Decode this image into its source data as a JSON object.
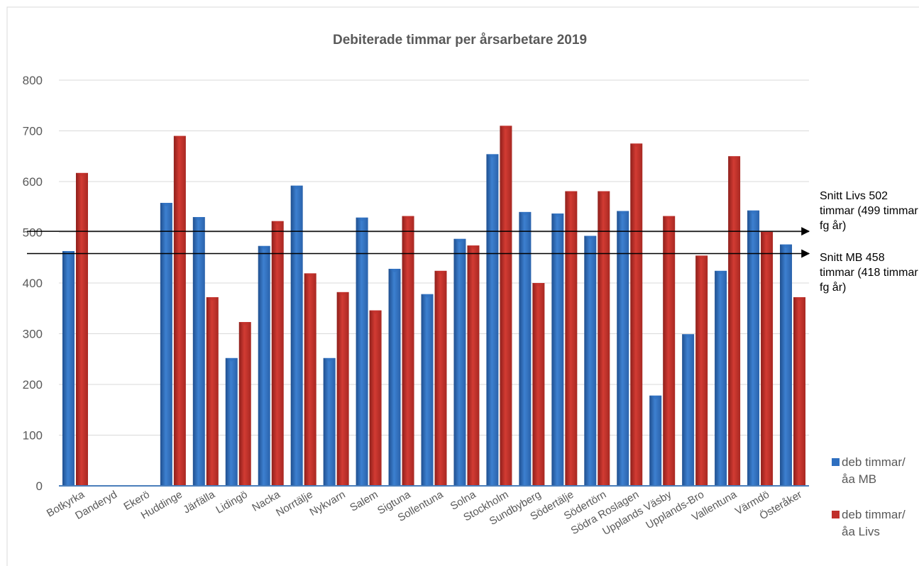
{
  "chart_data": {
    "type": "bar",
    "title": "Debiterade timmar per årsarbetare 2019",
    "categories": [
      "Botkyrka",
      "Danderyd",
      "Ekerö",
      "Huddinge",
      "Järfälla",
      "Lidingö",
      "Nacka",
      "Norrtälje",
      "Nykvarn",
      "Salem",
      "Sigtuna",
      "Sollentuna",
      "Solna",
      "Stockholm",
      "Sundbyberg",
      "Södertälje",
      "Södertörn",
      "Södra Roslagen",
      "Upplands Väsby",
      "Upplands-Bro",
      "Vallentuna",
      "Värmdö",
      "Österåker"
    ],
    "series": [
      {
        "name": "deb timmar/åa MB",
        "color": "#2e6fc0",
        "values": [
          463,
          null,
          null,
          558,
          530,
          252,
          473,
          592,
          252,
          529,
          428,
          378,
          487,
          654,
          540,
          537,
          493,
          542,
          178,
          299,
          424,
          543,
          476
        ]
      },
      {
        "name": "deb timmar/åa Livs",
        "color": "#c0302b",
        "values": [
          617,
          null,
          null,
          690,
          372,
          323,
          522,
          419,
          382,
          346,
          532,
          424,
          474,
          710,
          400,
          581,
          581,
          675,
          532,
          454,
          650,
          501,
          372
        ]
      }
    ],
    "ylim": [
      0,
      800
    ],
    "yticks": [
      0,
      100,
      200,
      300,
      400,
      500,
      600,
      700,
      800
    ],
    "grid": true,
    "legend": "bottom-right",
    "annotations": [
      {
        "value": 502,
        "text": "Snitt Livs 502 timmar (499 timmar fg år)"
      },
      {
        "value": 458,
        "text": "Snitt MB 458 timmar (418 timmar fg år)"
      }
    ]
  }
}
